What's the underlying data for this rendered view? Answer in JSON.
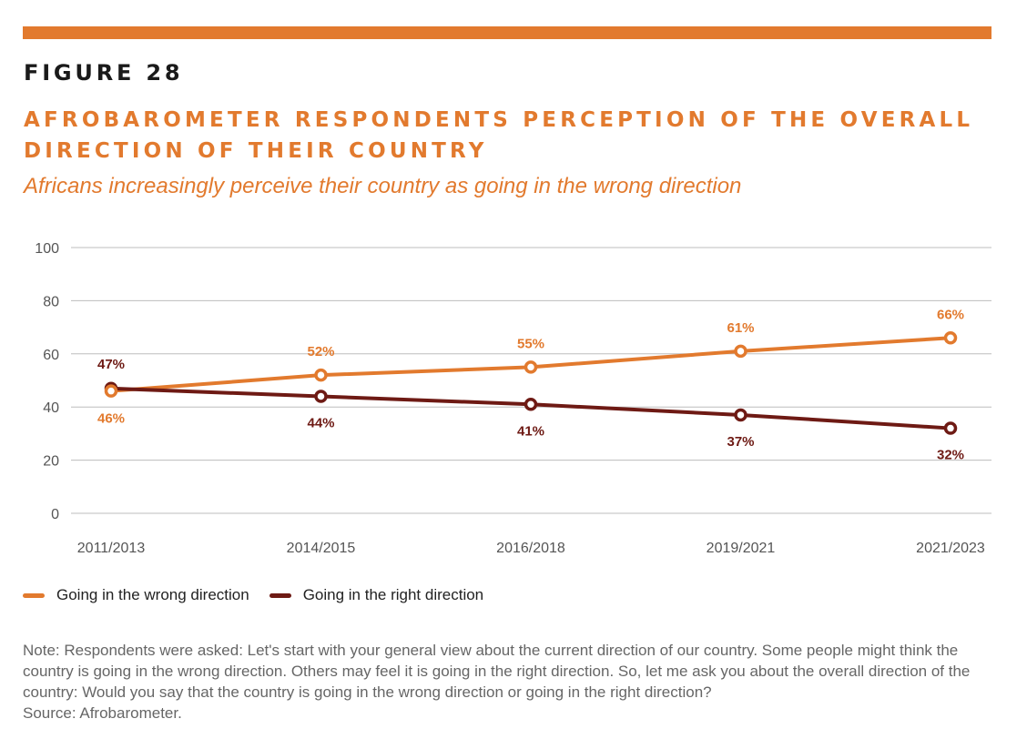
{
  "figure_label": "FIGURE 28",
  "title": "AFROBAROMETER RESPONDENTS PERCEPTION OF THE OVERALL DIRECTION OF THEIR COUNTRY",
  "subtitle": "Africans increasingly perceive their country as going in the wrong direction",
  "colors": {
    "accent": "#E27A2E",
    "dark": "#6E1A14",
    "grid": "#bdbdbd",
    "axis_text": "#555555",
    "note_text": "#666666"
  },
  "chart_data": {
    "type": "line",
    "x": [
      "2011/2013",
      "2014/2015",
      "2016/2018",
      "2019/2021",
      "2021/2023"
    ],
    "ylim": [
      0,
      100
    ],
    "yticks": [
      0,
      20,
      40,
      60,
      80,
      100
    ],
    "grid": true,
    "legend_position": "bottom-left",
    "series": [
      {
        "name": "Going in the wrong direction",
        "values": [
          46,
          52,
          55,
          61,
          66
        ],
        "labels": [
          "46%",
          "52%",
          "55%",
          "61%",
          "66%"
        ],
        "color": "#E27A2E"
      },
      {
        "name": "Going in the right direction",
        "values": [
          47,
          44,
          41,
          37,
          32
        ],
        "labels": [
          "47%",
          "44%",
          "41%",
          "37%",
          "32%"
        ],
        "color": "#6E1A14"
      }
    ]
  },
  "note": {
    "text": "Note: Respondents were asked: Let's start with your general view about the current direction of our country. Some people might think the country is going in the wrong direction. Others may feel it is going in the right direction. So, let me ask you about the overall direction of the country: Would you say that the country is going in the wrong direction or going in the right direction?",
    "source": "Source: Afrobarometer."
  }
}
